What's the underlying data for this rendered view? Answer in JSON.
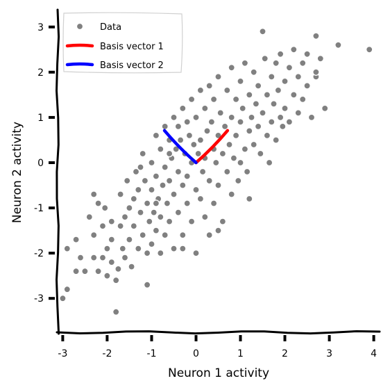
{
  "chart_data": {
    "type": "scatter",
    "xlabel": "Neuron 1 activity",
    "ylabel": "Neuron 2 activity",
    "xlim": [
      -3.1,
      4.1
    ],
    "ylim": [
      -3.75,
      3.35
    ],
    "xticks": [
      -3,
      -2,
      -1,
      0,
      1,
      2,
      3,
      4
    ],
    "yticks": [
      -3,
      -2,
      -1,
      0,
      1,
      2,
      3
    ],
    "grid": false,
    "legend_position": "top-left",
    "style": "xkcd",
    "colors": {
      "data": "#808080",
      "basis1": "#ff0000",
      "basis2": "#0000ff"
    },
    "legend": [
      {
        "label": "Data",
        "kind": "marker",
        "color": "#808080"
      },
      {
        "label": "Basis vector 1",
        "kind": "line",
        "color": "#ff0000"
      },
      {
        "label": "Basis vector 2",
        "kind": "line",
        "color": "#0000ff"
      }
    ],
    "series": [
      {
        "name": "Data",
        "kind": "scatter",
        "points": [
          [
            -3.0,
            -3.0
          ],
          [
            -2.9,
            -2.8
          ],
          [
            -2.9,
            -1.9
          ],
          [
            -2.7,
            -1.7
          ],
          [
            -2.7,
            -2.4
          ],
          [
            -2.6,
            -2.1
          ],
          [
            -2.5,
            -2.4
          ],
          [
            -2.3,
            -1.6
          ],
          [
            -2.3,
            -2.1
          ],
          [
            -2.3,
            -0.7
          ],
          [
            -2.2,
            -0.9
          ],
          [
            -2.2,
            -2.4
          ],
          [
            -2.1,
            -2.1
          ],
          [
            -2.1,
            -1.4
          ],
          [
            -2.05,
            -1.0
          ],
          [
            -2.0,
            -1.9
          ],
          [
            -2.0,
            -2.5
          ],
          [
            -1.9,
            -1.7
          ],
          [
            -1.9,
            -1.3
          ],
          [
            -1.9,
            -2.2
          ],
          [
            -1.8,
            -2.6
          ],
          [
            -1.8,
            -3.3
          ],
          [
            -1.75,
            -2.35
          ],
          [
            -1.7,
            -1.4
          ],
          [
            -1.7,
            -0.7
          ],
          [
            -1.65,
            -1.9
          ],
          [
            -1.6,
            -1.2
          ],
          [
            -1.6,
            -2.1
          ],
          [
            -1.55,
            -0.4
          ],
          [
            -1.5,
            -1.0
          ],
          [
            -1.5,
            -1.7
          ],
          [
            -1.45,
            -2.3
          ],
          [
            -1.4,
            -0.8
          ],
          [
            -1.4,
            -1.4
          ],
          [
            -1.35,
            -0.2
          ],
          [
            -1.3,
            -1.9
          ],
          [
            -1.3,
            -0.6
          ],
          [
            -1.25,
            -1.1
          ],
          [
            -1.2,
            0.2
          ],
          [
            -1.2,
            -1.6
          ],
          [
            -1.15,
            -0.4
          ],
          [
            -1.1,
            -2.0
          ],
          [
            -1.1,
            -0.9
          ],
          [
            -1.05,
            -1.3
          ],
          [
            -1.0,
            0.0
          ],
          [
            -1.0,
            -0.6
          ],
          [
            -1.0,
            -1.8
          ],
          [
            -0.95,
            -1.1
          ],
          [
            -0.9,
            0.6
          ],
          [
            -0.9,
            -0.3
          ],
          [
            -0.9,
            -1.5
          ],
          [
            -0.85,
            -0.8
          ],
          [
            -0.8,
            0.3
          ],
          [
            -0.8,
            -1.2
          ],
          [
            -0.8,
            -2.0
          ],
          [
            -0.75,
            -0.5
          ],
          [
            -0.7,
            0.8
          ],
          [
            -0.7,
            -0.1
          ],
          [
            -0.7,
            -1.6
          ],
          [
            -0.65,
            -0.9
          ],
          [
            -0.6,
            0.5
          ],
          [
            -0.6,
            -0.4
          ],
          [
            -0.6,
            -1.3
          ],
          [
            -0.55,
            0.1
          ],
          [
            -0.5,
            1.0
          ],
          [
            -0.5,
            -0.7
          ],
          [
            -0.5,
            -1.9
          ],
          [
            -0.45,
            0.3
          ],
          [
            -0.4,
            0.8
          ],
          [
            -0.4,
            -0.2
          ],
          [
            -0.4,
            -1.1
          ],
          [
            -0.35,
            0.5
          ],
          [
            -0.3,
            1.2
          ],
          [
            -0.3,
            -0.5
          ],
          [
            -0.3,
            -1.6
          ],
          [
            -0.25,
            0.2
          ],
          [
            -0.2,
            0.9
          ],
          [
            -0.2,
            -0.3
          ],
          [
            -0.2,
            -0.9
          ],
          [
            -0.15,
            0.6
          ],
          [
            -0.1,
            1.4
          ],
          [
            -0.1,
            0.0
          ],
          [
            -0.1,
            -1.3
          ],
          [
            -0.05,
            0.4
          ],
          [
            0.0,
            1.0
          ],
          [
            0.0,
            -0.6
          ],
          [
            0.0,
            -2.0
          ],
          [
            0.05,
            0.2
          ],
          [
            0.1,
            1.6
          ],
          [
            0.1,
            0.5
          ],
          [
            0.1,
            -0.8
          ],
          [
            0.15,
            -0.2
          ],
          [
            0.2,
            1.2
          ],
          [
            0.2,
            0.1
          ],
          [
            0.2,
            -1.2
          ],
          [
            0.25,
            0.7
          ],
          [
            0.3,
            1.7
          ],
          [
            0.3,
            -0.4
          ],
          [
            0.3,
            -1.6
          ],
          [
            0.35,
            0.9
          ],
          [
            0.4,
            0.3
          ],
          [
            0.4,
            1.4
          ],
          [
            0.4,
            -0.9
          ],
          [
            0.45,
            0.0
          ],
          [
            0.5,
            1.9
          ],
          [
            0.5,
            0.6
          ],
          [
            0.5,
            -0.5
          ],
          [
            0.55,
            1.1
          ],
          [
            0.6,
            0.2
          ],
          [
            0.6,
            -1.3
          ],
          [
            0.65,
            0.8
          ],
          [
            0.7,
            1.6
          ],
          [
            0.7,
            -0.2
          ],
          [
            0.75,
            0.4
          ],
          [
            0.8,
            2.1
          ],
          [
            0.8,
            1.0
          ],
          [
            0.8,
            -0.7
          ],
          [
            0.85,
            0.1
          ],
          [
            0.9,
            1.4
          ],
          [
            0.9,
            0.6
          ],
          [
            0.95,
            -0.4
          ],
          [
            1.0,
            1.8
          ],
          [
            1.0,
            0.9
          ],
          [
            1.0,
            0.0
          ],
          [
            1.05,
            1.2
          ],
          [
            1.1,
            0.3
          ],
          [
            1.1,
            2.2
          ],
          [
            1.15,
            -0.2
          ],
          [
            1.2,
            1.5
          ],
          [
            1.2,
            0.7
          ],
          [
            1.25,
            1.0
          ],
          [
            1.3,
            2.0
          ],
          [
            1.3,
            0.4
          ],
          [
            1.35,
            1.3
          ],
          [
            1.4,
            0.8
          ],
          [
            1.4,
            1.7
          ],
          [
            1.45,
            0.2
          ],
          [
            1.5,
            2.9
          ],
          [
            1.5,
            1.1
          ],
          [
            1.55,
            2.3
          ],
          [
            1.6,
            0.6
          ],
          [
            1.6,
            1.5
          ],
          [
            1.65,
            0.0
          ],
          [
            1.7,
            1.9
          ],
          [
            1.7,
            0.9
          ],
          [
            1.75,
            1.3
          ],
          [
            1.8,
            2.2
          ],
          [
            1.8,
            0.5
          ],
          [
            1.85,
            1.6
          ],
          [
            1.9,
            1.0
          ],
          [
            1.9,
            2.4
          ],
          [
            1.95,
            0.8
          ],
          [
            2.0,
            1.8
          ],
          [
            2.0,
            1.2
          ],
          [
            2.1,
            2.1
          ],
          [
            2.1,
            0.9
          ],
          [
            2.2,
            1.5
          ],
          [
            2.2,
            2.5
          ],
          [
            2.3,
            1.1
          ],
          [
            2.3,
            1.9
          ],
          [
            2.4,
            2.2
          ],
          [
            2.4,
            1.4
          ],
          [
            2.5,
            1.7
          ],
          [
            2.5,
            2.4
          ],
          [
            2.6,
            1.0
          ],
          [
            2.7,
            2.8
          ],
          [
            2.7,
            1.9
          ],
          [
            2.7,
            2.0
          ],
          [
            2.8,
            2.3
          ],
          [
            2.9,
            1.2
          ],
          [
            3.2,
            2.6
          ],
          [
            3.9,
            2.5
          ],
          [
            -1.1,
            -2.7
          ],
          [
            -0.3,
            -1.9
          ],
          [
            -2.4,
            -1.2
          ],
          [
            0.5,
            -1.5
          ],
          [
            1.2,
            -0.8
          ],
          [
            -0.9,
            -0.9
          ],
          [
            -0.6,
            0.2
          ],
          [
            -1.25,
            -0.1
          ]
        ]
      },
      {
        "name": "Basis vector 1",
        "kind": "line",
        "points": [
          [
            0.0,
            0.0
          ],
          [
            0.71,
            0.71
          ]
        ]
      },
      {
        "name": "Basis vector 2",
        "kind": "line",
        "points": [
          [
            0.0,
            0.0
          ],
          [
            -0.71,
            0.71
          ]
        ]
      }
    ]
  }
}
